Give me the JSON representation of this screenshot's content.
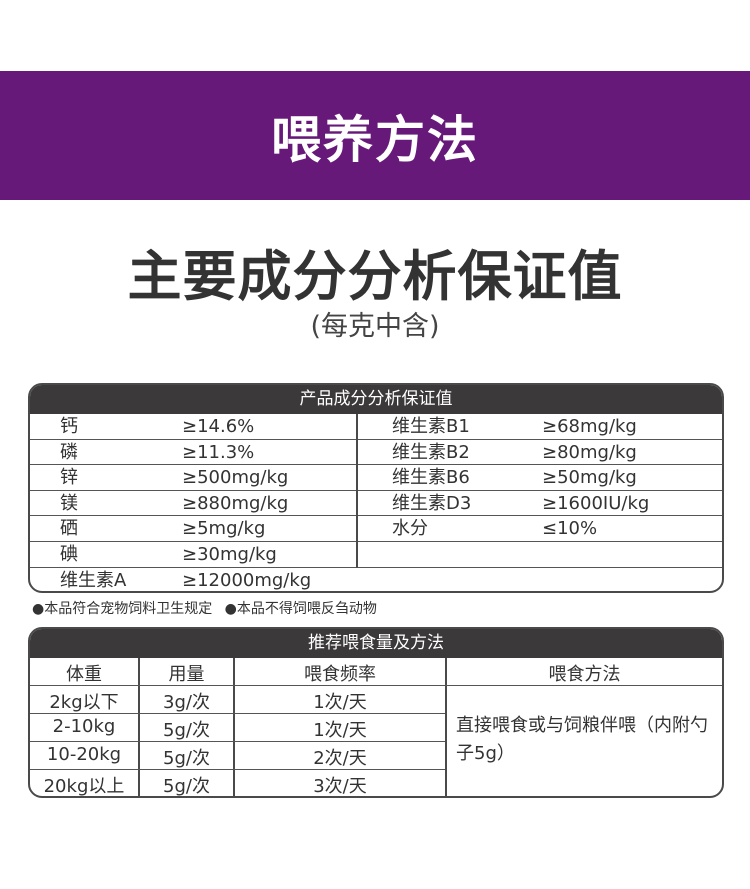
{
  "banner": {
    "title": "喂养方法"
  },
  "heading": {
    "title": "主要成分分析保证值",
    "subtitle": "(每克中含)"
  },
  "nutrition_table": {
    "header": "产品成分分析保证值",
    "left": [
      {
        "name": "钙",
        "value": "≥14.6%"
      },
      {
        "name": "磷",
        "value": "≥11.3%"
      },
      {
        "name": "锌",
        "value": "≥500mg/kg"
      },
      {
        "name": "镁",
        "value": "≥880mg/kg"
      },
      {
        "name": "硒",
        "value": "≥5mg/kg"
      },
      {
        "name": "碘",
        "value": "≥30mg/kg"
      },
      {
        "name": "维生素A",
        "value": "≥12000mg/kg"
      }
    ],
    "right": [
      {
        "name": "维生素B1",
        "value": "≥68mg/kg"
      },
      {
        "name": "维生素B2",
        "value": "≥80mg/kg"
      },
      {
        "name": "维生素B6",
        "value": "≥50mg/kg"
      },
      {
        "name": "维生素D3",
        "value": "≥1600IU/kg"
      },
      {
        "name": "水分",
        "value": "≤10%"
      },
      {
        "name": "",
        "value": ""
      }
    ]
  },
  "notes": [
    "●本品符合宠物饲料卫生规定",
    "●本品不得饲喂反刍动物"
  ],
  "feeding_table": {
    "header": "推荐喂食量及方法",
    "columns": [
      "体重",
      "用量",
      "喂食频率",
      "喂食方法"
    ],
    "rows": [
      {
        "weight": "2kg以下",
        "amount": "3g/次",
        "frequency": "1次/天"
      },
      {
        "weight": "2-10kg",
        "amount": "5g/次",
        "frequency": "1次/天"
      },
      {
        "weight": "10-20kg",
        "amount": "5g/次",
        "frequency": "2次/天"
      },
      {
        "weight": "20kg以上",
        "amount": "5g/次",
        "frequency": "3次/天"
      }
    ],
    "method": "直接喂食或与饲粮伴喂（内附勺子5g）"
  },
  "colors": {
    "banner": "#67197a",
    "table_header": "#3c393b"
  }
}
